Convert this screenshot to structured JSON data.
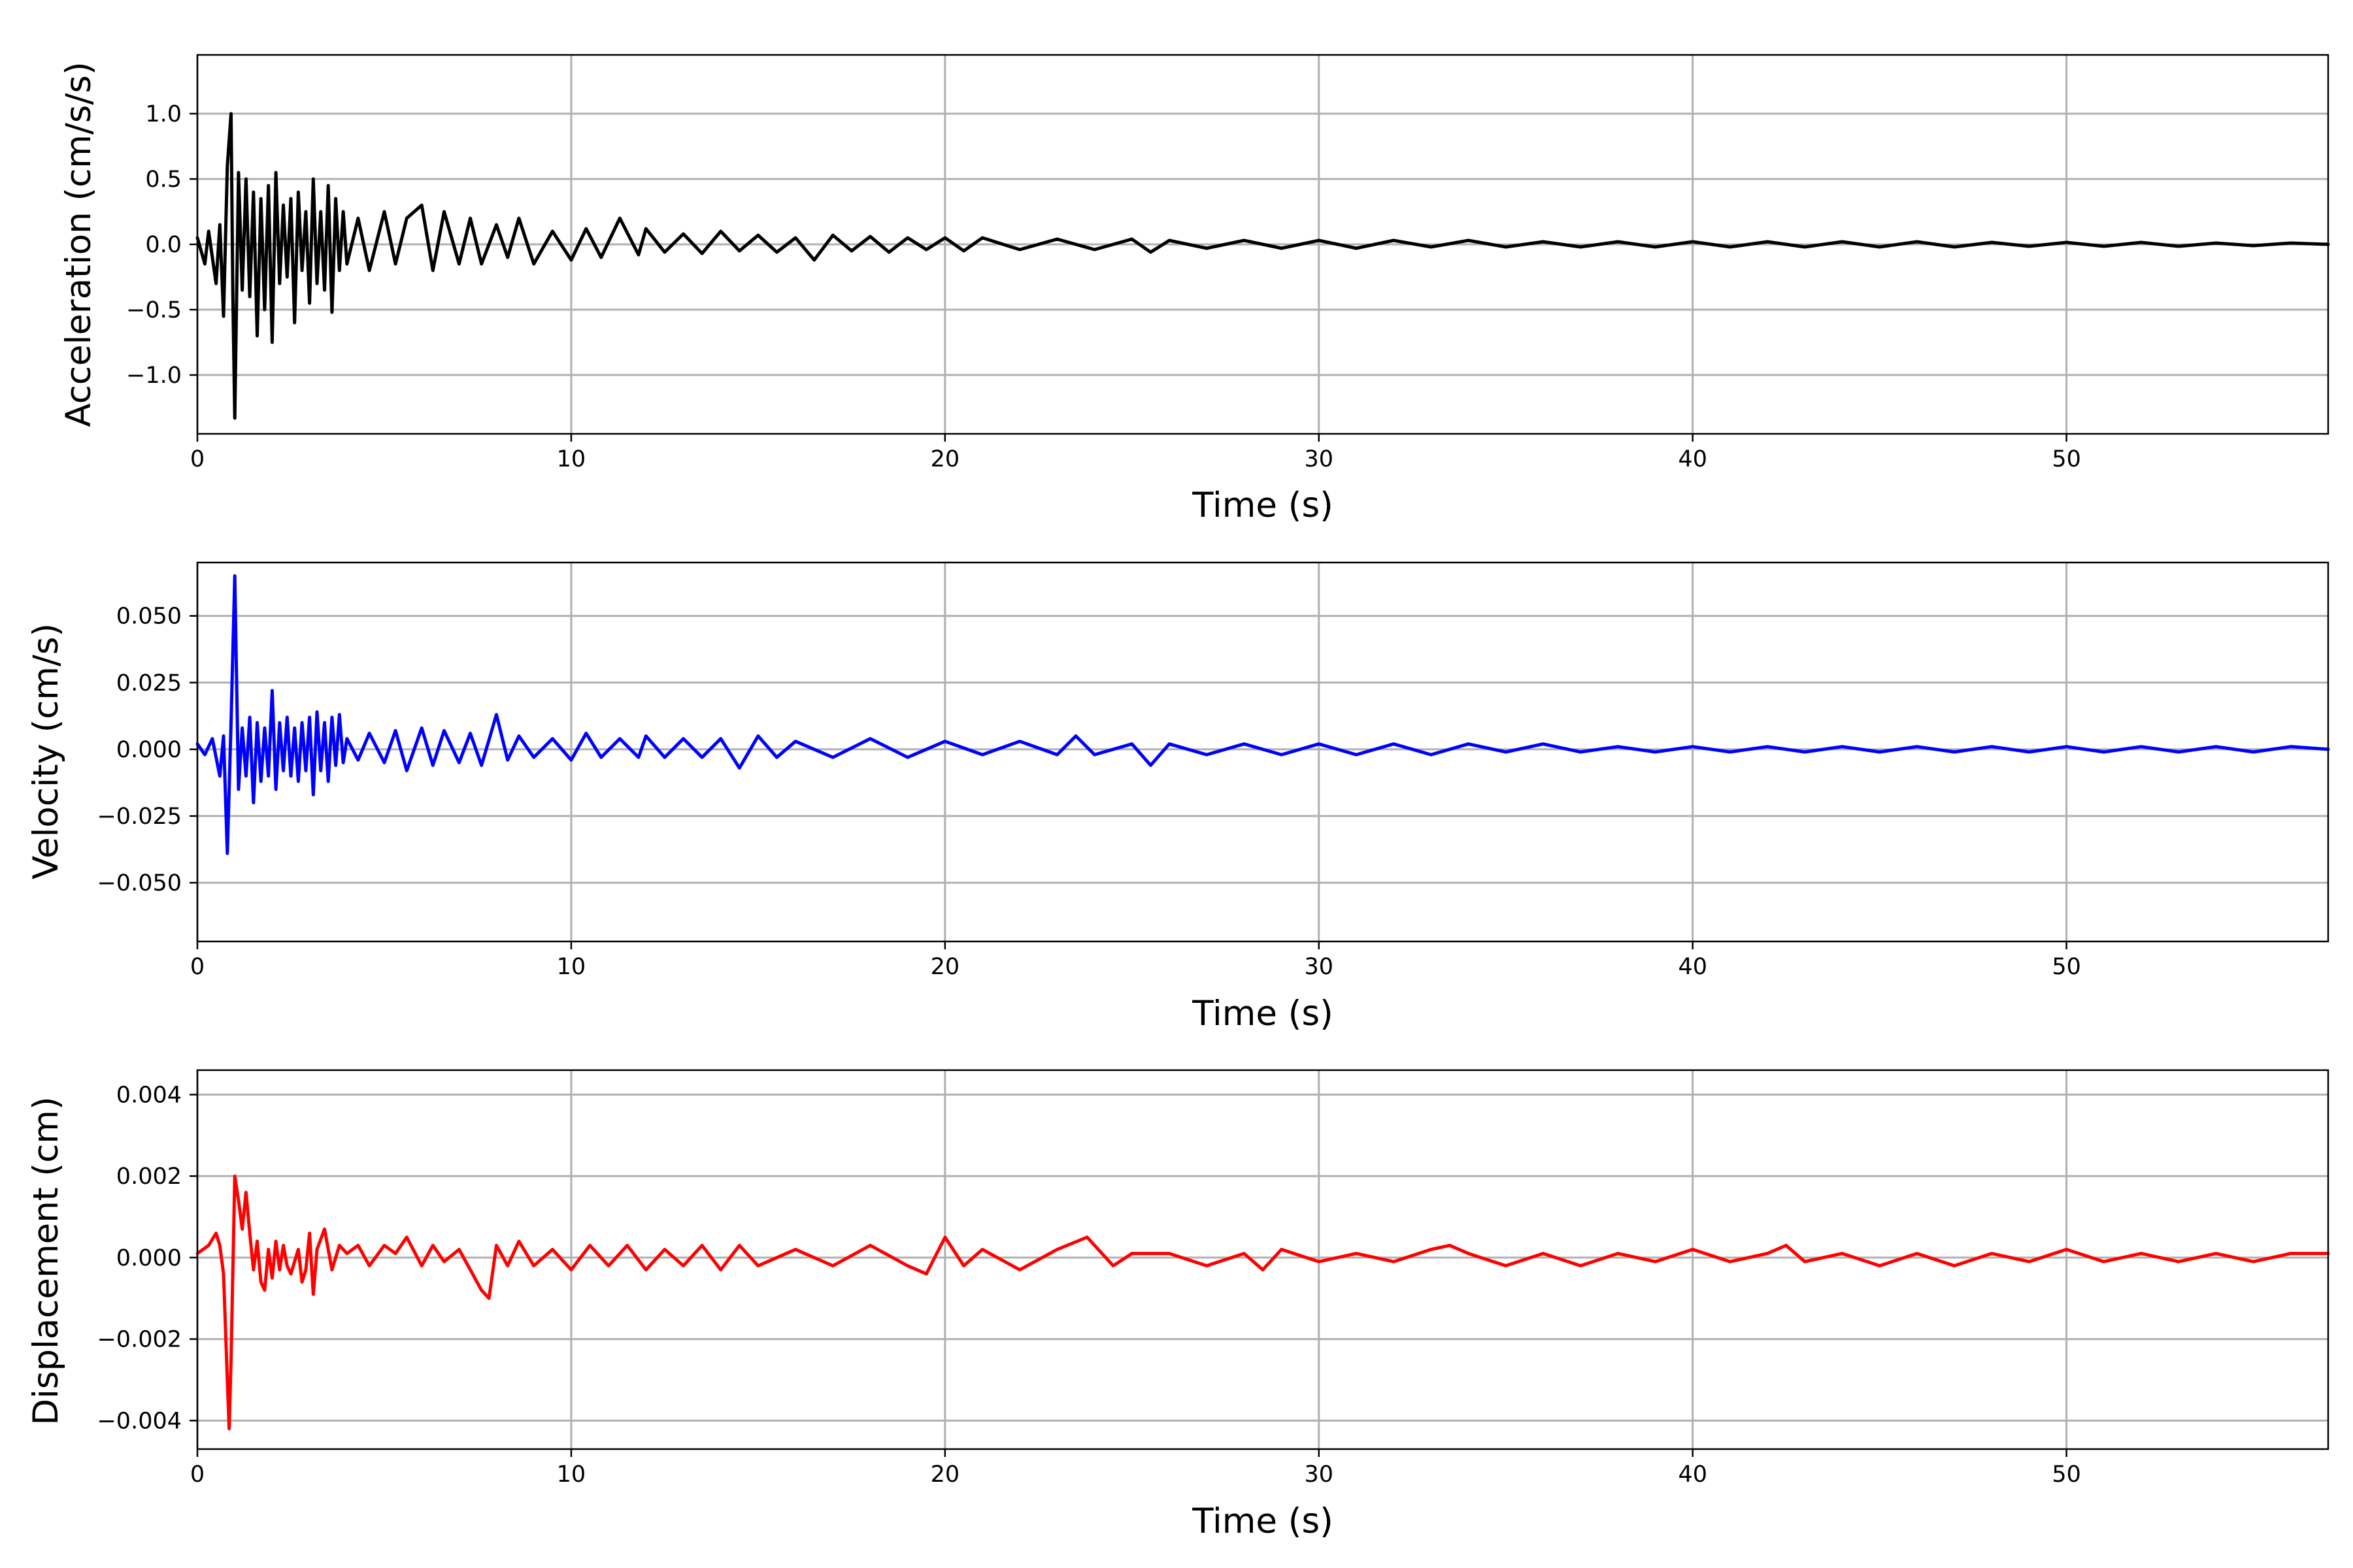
{
  "chart_data": [
    {
      "type": "line",
      "name": "acceleration-panel",
      "xlabel": "Time (s)",
      "ylabel": "Acceleration (cm/s/s)",
      "xlim": [
        0,
        57
      ],
      "ylim": [
        -1.45,
        1.45
      ],
      "xticks": [
        0,
        10,
        20,
        30,
        40,
        50
      ],
      "xtick_labels": [
        "0",
        "10",
        "20",
        "30",
        "40",
        "50"
      ],
      "yticks": [
        -1.0,
        -0.5,
        0.0,
        0.5,
        1.0
      ],
      "ytick_labels": [
        "−1.0",
        "−0.5",
        "0.0",
        "0.5",
        "1.0"
      ],
      "grid": true,
      "color": "#000000",
      "series": [
        {
          "name": "",
          "x": [
            0,
            0.2,
            0.3,
            0.5,
            0.6,
            0.7,
            0.8,
            0.9,
            0.95,
            1.0,
            1.1,
            1.2,
            1.3,
            1.4,
            1.5,
            1.6,
            1.7,
            1.8,
            1.9,
            2.0,
            2.1,
            2.2,
            2.3,
            2.4,
            2.5,
            2.6,
            2.7,
            2.8,
            2.9,
            3.0,
            3.1,
            3.2,
            3.3,
            3.4,
            3.5,
            3.6,
            3.7,
            3.8,
            3.9,
            4.0,
            4.3,
            4.6,
            5.0,
            5.3,
            5.6,
            6.0,
            6.3,
            6.6,
            7.0,
            7.3,
            7.6,
            8.0,
            8.3,
            8.6,
            9.0,
            9.5,
            10.0,
            10.4,
            10.8,
            11.3,
            11.8,
            12.0,
            12.5,
            13.0,
            13.5,
            14.0,
            14.5,
            15.0,
            15.5,
            16.0,
            16.5,
            17.0,
            17.5,
            18.0,
            18.5,
            19.0,
            19.5,
            20.0,
            20.5,
            21.0,
            22.0,
            23.0,
            24.0,
            25.0,
            25.5,
            26.0,
            27.0,
            28.0,
            29.0,
            30.0,
            31.0,
            32.0,
            33.0,
            34.0,
            35.0,
            36.0,
            37.0,
            38.0,
            39.0,
            40.0,
            41.0,
            42.0,
            43.0,
            44.0,
            45.0,
            46.0,
            47.0,
            48.0,
            49.0,
            50.0,
            51.0,
            52.0,
            53.0,
            54.0,
            55.0,
            56.0,
            57.0
          ],
          "y": [
            0.05,
            -0.15,
            0.1,
            -0.3,
            0.15,
            -0.55,
            0.6,
            1.0,
            -0.4,
            -1.33,
            0.55,
            -0.35,
            0.5,
            -0.4,
            0.4,
            -0.7,
            0.35,
            -0.5,
            0.45,
            -0.75,
            0.55,
            -0.3,
            0.3,
            -0.25,
            0.35,
            -0.6,
            0.4,
            -0.2,
            0.25,
            -0.45,
            0.5,
            -0.3,
            0.25,
            -0.35,
            0.45,
            -0.52,
            0.35,
            -0.2,
            0.25,
            -0.15,
            0.2,
            -0.2,
            0.25,
            -0.15,
            0.2,
            0.3,
            -0.2,
            0.25,
            -0.15,
            0.2,
            -0.15,
            0.15,
            -0.1,
            0.2,
            -0.15,
            0.1,
            -0.12,
            0.12,
            -0.1,
            0.2,
            -0.08,
            0.12,
            -0.06,
            0.08,
            -0.07,
            0.1,
            -0.05,
            0.07,
            -0.06,
            0.05,
            -0.12,
            0.07,
            -0.05,
            0.06,
            -0.06,
            0.05,
            -0.04,
            0.05,
            -0.05,
            0.05,
            -0.04,
            0.04,
            -0.04,
            0.04,
            -0.06,
            0.03,
            -0.03,
            0.03,
            -0.03,
            0.03,
            -0.03,
            0.03,
            -0.02,
            0.03,
            -0.02,
            0.02,
            -0.02,
            0.02,
            -0.02,
            0.02,
            -0.02,
            0.02,
            -0.02,
            0.02,
            -0.02,
            0.02,
            -0.02,
            0.015,
            -0.015,
            0.015,
            -0.015,
            0.015,
            -0.015,
            0.01,
            -0.01,
            0.01,
            0.0
          ]
        }
      ]
    },
    {
      "type": "line",
      "name": "velocity-panel",
      "xlabel": "Time (s)",
      "ylabel": "Velocity (cm/s)",
      "xlim": [
        0,
        57
      ],
      "ylim": [
        -0.072,
        0.07
      ],
      "xticks": [
        0,
        10,
        20,
        30,
        40,
        50
      ],
      "xtick_labels": [
        "0",
        "10",
        "20",
        "30",
        "40",
        "50"
      ],
      "yticks": [
        -0.05,
        -0.025,
        0.0,
        0.025,
        0.05
      ],
      "ytick_labels": [
        "−0.050",
        "−0.025",
        "0.000",
        "0.025",
        "0.050"
      ],
      "grid": true,
      "color": "#0000ff",
      "series": [
        {
          "name": "",
          "x": [
            0,
            0.2,
            0.4,
            0.6,
            0.7,
            0.8,
            0.9,
            1.0,
            1.1,
            1.2,
            1.3,
            1.4,
            1.5,
            1.6,
            1.7,
            1.8,
            1.9,
            2.0,
            2.1,
            2.2,
            2.3,
            2.4,
            2.5,
            2.6,
            2.7,
            2.8,
            2.9,
            3.0,
            3.1,
            3.2,
            3.3,
            3.4,
            3.5,
            3.6,
            3.7,
            3.8,
            3.9,
            4.0,
            4.3,
            4.6,
            5.0,
            5.3,
            5.6,
            6.0,
            6.3,
            6.6,
            7.0,
            7.3,
            7.6,
            8.0,
            8.3,
            8.6,
            9.0,
            9.5,
            10.0,
            10.4,
            10.8,
            11.3,
            11.8,
            12.0,
            12.5,
            13.0,
            13.5,
            14.0,
            14.5,
            15.0,
            15.5,
            16.0,
            17.0,
            18.0,
            19.0,
            20.0,
            21.0,
            22.0,
            23.0,
            23.5,
            24.0,
            25.0,
            25.5,
            26.0,
            27.0,
            28.0,
            29.0,
            30.0,
            31.0,
            32.0,
            33.0,
            34.0,
            35.0,
            36.0,
            37.0,
            38.0,
            39.0,
            40.0,
            41.0,
            42.0,
            43.0,
            44.0,
            45.0,
            46.0,
            47.0,
            48.0,
            49.0,
            50.0,
            51.0,
            52.0,
            53.0,
            54.0,
            55.0,
            56.0,
            57.0
          ],
          "y": [
            0.002,
            -0.002,
            0.004,
            -0.01,
            0.005,
            -0.039,
            0.01,
            0.065,
            -0.015,
            0.008,
            -0.01,
            0.012,
            -0.02,
            0.01,
            -0.012,
            0.008,
            -0.01,
            0.022,
            -0.015,
            0.01,
            -0.008,
            0.012,
            -0.01,
            0.008,
            -0.012,
            0.01,
            -0.008,
            0.012,
            -0.017,
            0.014,
            -0.008,
            0.01,
            -0.012,
            0.012,
            -0.006,
            0.013,
            -0.005,
            0.004,
            -0.004,
            0.006,
            -0.005,
            0.007,
            -0.008,
            0.008,
            -0.006,
            0.007,
            -0.005,
            0.006,
            -0.006,
            0.013,
            -0.004,
            0.005,
            -0.003,
            0.004,
            -0.004,
            0.006,
            -0.003,
            0.004,
            -0.003,
            0.005,
            -0.003,
            0.004,
            -0.003,
            0.004,
            -0.007,
            0.005,
            -0.003,
            0.003,
            -0.003,
            0.004,
            -0.003,
            0.003,
            -0.002,
            0.003,
            -0.002,
            0.005,
            -0.002,
            0.002,
            -0.006,
            0.002,
            -0.002,
            0.002,
            -0.002,
            0.002,
            -0.002,
            0.002,
            -0.002,
            0.002,
            -0.001,
            0.002,
            -0.001,
            0.001,
            -0.001,
            0.001,
            -0.001,
            0.001,
            -0.001,
            0.001,
            -0.001,
            0.001,
            -0.001,
            0.001,
            -0.001,
            0.001,
            -0.001,
            0.001,
            -0.001,
            0.001,
            -0.001,
            0.001,
            0.0
          ]
        }
      ]
    },
    {
      "type": "line",
      "name": "displacement-panel",
      "xlabel": "Time (s)",
      "ylabel": "Displacement (cm)",
      "xlim": [
        0,
        57
      ],
      "ylim": [
        -0.0047,
        0.0046
      ],
      "xticks": [
        0,
        10,
        20,
        30,
        40,
        50
      ],
      "xtick_labels": [
        "0",
        "10",
        "20",
        "30",
        "40",
        "50"
      ],
      "yticks": [
        -0.004,
        -0.002,
        0.0,
        0.002,
        0.004
      ],
      "ytick_labels": [
        "−0.004",
        "−0.002",
        "0.000",
        "0.002",
        "0.004"
      ],
      "grid": true,
      "color": "#ff0000",
      "series": [
        {
          "name": "",
          "x": [
            0,
            0.3,
            0.5,
            0.6,
            0.7,
            0.8,
            0.85,
            0.9,
            1.0,
            1.1,
            1.2,
            1.3,
            1.4,
            1.5,
            1.6,
            1.7,
            1.8,
            1.9,
            2.0,
            2.1,
            2.2,
            2.3,
            2.4,
            2.5,
            2.6,
            2.7,
            2.8,
            2.9,
            3.0,
            3.1,
            3.2,
            3.4,
            3.6,
            3.8,
            4.0,
            4.3,
            4.6,
            5.0,
            5.3,
            5.6,
            6.0,
            6.3,
            6.6,
            7.0,
            7.3,
            7.6,
            7.8,
            8.0,
            8.3,
            8.6,
            9.0,
            9.5,
            10.0,
            10.5,
            11.0,
            11.5,
            12.0,
            12.5,
            13.0,
            13.5,
            14.0,
            14.5,
            15.0,
            16.0,
            17.0,
            18.0,
            19.0,
            19.5,
            20.0,
            20.5,
            21.0,
            22.0,
            23.0,
            23.8,
            24.5,
            25.0,
            26.0,
            27.0,
            28.0,
            28.5,
            29.0,
            30.0,
            31.0,
            32.0,
            33.0,
            33.5,
            34.0,
            35.0,
            36.0,
            37.0,
            38.0,
            39.0,
            40.0,
            41.0,
            42.0,
            42.5,
            43.0,
            44.0,
            45.0,
            46.0,
            47.0,
            48.0,
            49.0,
            50.0,
            51.0,
            52.0,
            53.0,
            54.0,
            55.0,
            56.0,
            57.0
          ],
          "y": [
            0.0001,
            0.0003,
            0.0006,
            0.0003,
            -0.0004,
            -0.003,
            -0.0042,
            -0.0025,
            0.002,
            0.0014,
            0.0007,
            0.0016,
            0.0006,
            -0.0003,
            0.0004,
            -0.0006,
            -0.0008,
            0.0002,
            -0.0005,
            0.0004,
            -0.0003,
            0.0003,
            -0.0002,
            -0.0004,
            -0.0001,
            0.0002,
            -0.0006,
            -0.0003,
            0.0006,
            -0.0009,
            0.0002,
            0.0007,
            -0.0003,
            0.0003,
            0.0001,
            0.0003,
            -0.0002,
            0.0003,
            0.0001,
            0.0005,
            -0.0002,
            0.0003,
            -0.0001,
            0.0002,
            -0.0003,
            -0.0008,
            -0.001,
            0.0003,
            -0.0002,
            0.0004,
            -0.0002,
            0.0002,
            -0.0003,
            0.0003,
            -0.0002,
            0.0003,
            -0.0003,
            0.0002,
            -0.0002,
            0.0003,
            -0.0003,
            0.0003,
            -0.0002,
            0.0002,
            -0.0002,
            0.0003,
            -0.0002,
            -0.0004,
            0.0005,
            -0.0002,
            0.0002,
            -0.0003,
            0.0002,
            0.0005,
            -0.0002,
            0.0001,
            0.0001,
            -0.0002,
            0.0001,
            -0.0003,
            0.0002,
            -0.0001,
            0.0001,
            -0.0001,
            0.0002,
            0.0003,
            0.0001,
            -0.0002,
            0.0001,
            -0.0002,
            0.0001,
            -0.0001,
            0.0002,
            -0.0001,
            0.0001,
            0.0003,
            -0.0001,
            0.0001,
            -0.0002,
            0.0001,
            -0.0002,
            0.0001,
            -0.0001,
            0.0002,
            -0.0001,
            0.0001,
            -0.0001,
            0.0001,
            -0.0001,
            0.0001,
            0.0001
          ]
        }
      ]
    }
  ]
}
